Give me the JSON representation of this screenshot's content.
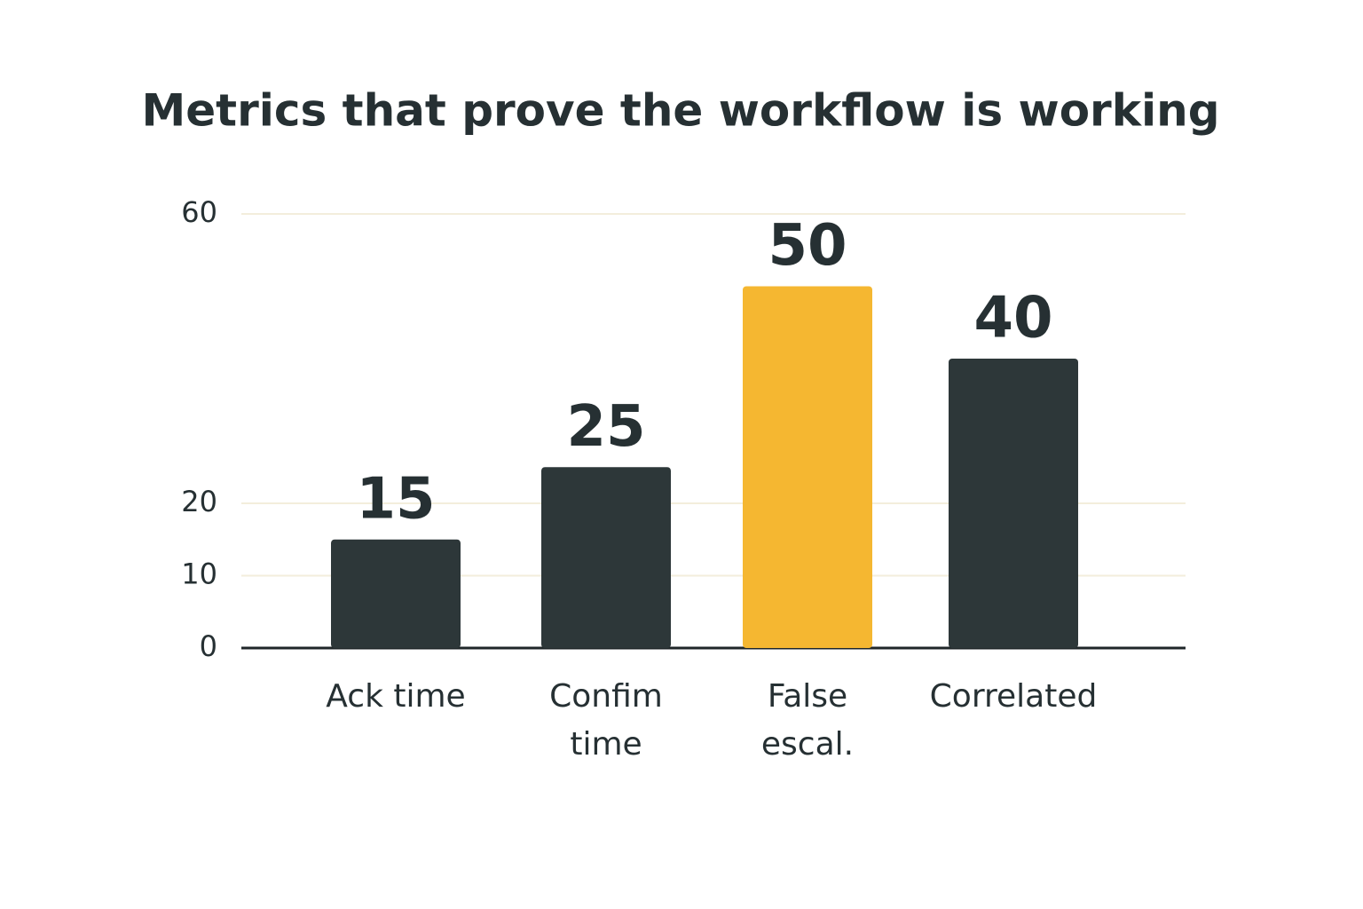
{
  "chart_data": {
    "type": "bar",
    "title": "Metrics that prove the workflow is working",
    "categories": [
      "Ack time",
      "Confim\ntime",
      "False\nescal.",
      "Correlated"
    ],
    "values": [
      15,
      25,
      50,
      40
    ],
    "colors": [
      "#2d3739",
      "#2d3739",
      "#f5b731",
      "#2d3739"
    ],
    "ylim": [
      0,
      60
    ],
    "yticks": [
      0,
      10,
      20,
      60
    ],
    "grid": true
  }
}
